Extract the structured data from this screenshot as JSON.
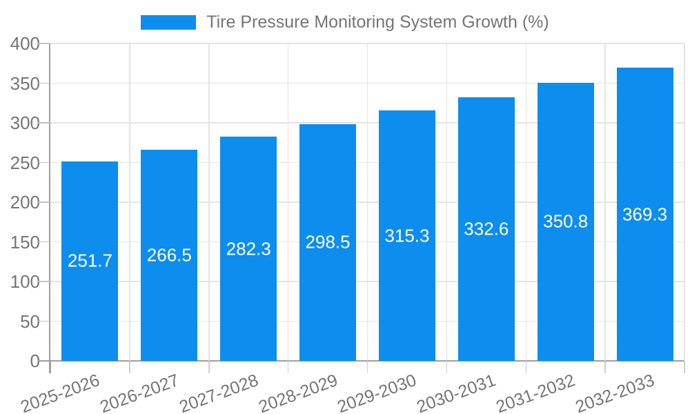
{
  "legend": {
    "label": "Tire Pressure Monitoring System Growth (%)",
    "swatch_color": "#0d8dee"
  },
  "colors": {
    "bar": "#0d8dee",
    "value_label": "#ffffff",
    "axis_text": "#757575",
    "gridline": "#e4e4e4",
    "axis_line": "#9e9e9e",
    "tick_mark": "#c2c2c2",
    "background": "#ffffff"
  },
  "chart_data": {
    "type": "bar",
    "title": "Tire Pressure Monitoring System Growth (%)",
    "categories": [
      "2025-2026",
      "2026-2027",
      "2027-2028",
      "2028-2029",
      "2029-2030",
      "2030-2031",
      "2031-2032",
      "2032-2033"
    ],
    "values": [
      251.7,
      266.5,
      282.3,
      298.5,
      315.3,
      332.6,
      350.8,
      369.3
    ],
    "value_labels": [
      "251.7",
      "266.5",
      "282.3",
      "298.5",
      "315.3",
      "332.6",
      "350.8",
      "369.3"
    ],
    "xlabel": "",
    "ylabel": "",
    "ylim": [
      0,
      400
    ],
    "yticks": [
      0,
      50,
      100,
      150,
      200,
      250,
      300,
      350,
      400
    ],
    "grid": true,
    "legend_position": "top",
    "x_label_rotation_deg": -20,
    "bar_color": "#0d8dee",
    "value_label_color": "#ffffff"
  }
}
